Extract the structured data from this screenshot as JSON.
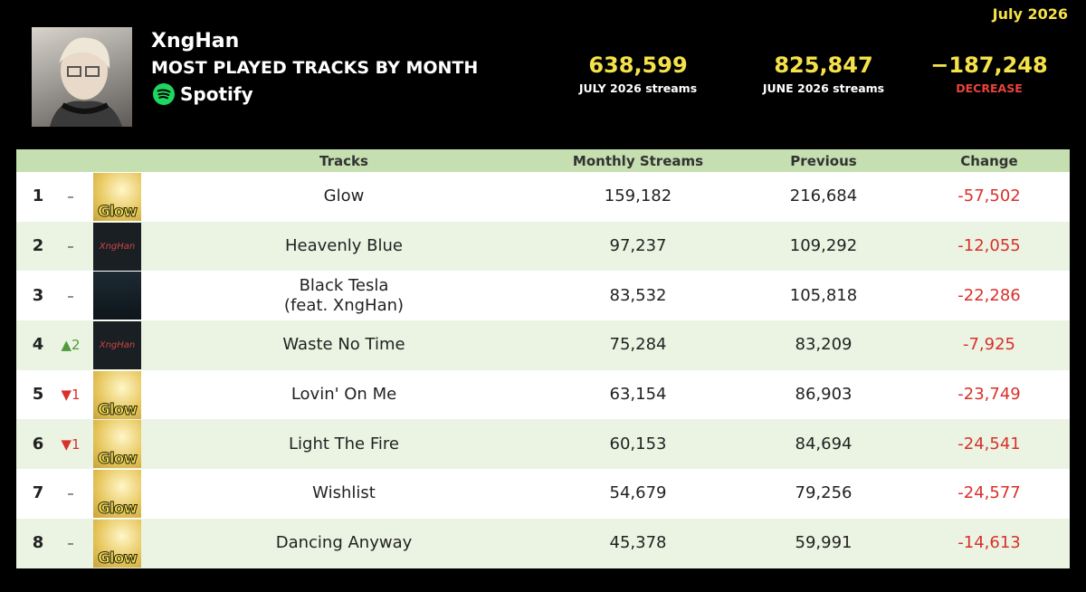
{
  "header": {
    "period": "July 2026",
    "artist": "XngHan",
    "subtitle": "MOST PLAYED TRACKS BY MONTH",
    "platform": "Spotify",
    "stats": [
      {
        "value": "638,599",
        "label": "JULY 2026 streams"
      },
      {
        "value": "825,847",
        "label": "JUNE 2026 streams"
      },
      {
        "value": "−187,248",
        "label": "DECREASE"
      }
    ]
  },
  "table": {
    "columns": [
      "Tracks",
      "Monthly Streams",
      "Previous",
      "Change"
    ],
    "rows": [
      {
        "rank": 1,
        "move": "–",
        "cover": "Glow",
        "track": "Glow",
        "monthly": "159,182",
        "previous": "216,684",
        "change": "-57,502"
      },
      {
        "rank": 2,
        "move": "–",
        "cover": "XngHan",
        "track": "Heavenly Blue",
        "monthly": "97,237",
        "previous": "109,292",
        "change": "-12,055"
      },
      {
        "rank": 3,
        "move": "–",
        "track": "Black Tesla\n(feat. XngHan)",
        "monthly": "83,532",
        "previous": "105,818",
        "change": "-22,286"
      },
      {
        "rank": 4,
        "move": "▲2",
        "cover": "XngHan",
        "track": "Waste No Time",
        "monthly": "75,284",
        "previous": "83,209",
        "change": "-7,925"
      },
      {
        "rank": 5,
        "move": "▼1",
        "cover": "Glow",
        "track": "Lovin' On Me",
        "monthly": "63,154",
        "previous": "86,903",
        "change": "-23,749"
      },
      {
        "rank": 6,
        "move": "▼1",
        "cover": "Glow",
        "track": "Light The Fire",
        "monthly": "60,153",
        "previous": "84,694",
        "change": "-24,541"
      },
      {
        "rank": 7,
        "move": "–",
        "cover": "Glow",
        "track": "Wishlist",
        "monthly": "54,679",
        "previous": "79,256",
        "change": "-24,577"
      },
      {
        "rank": 8,
        "move": "–",
        "cover": "Glow",
        "track": "Dancing Anyway",
        "monthly": "45,378",
        "previous": "59,991",
        "change": "-14,613"
      }
    ]
  }
}
